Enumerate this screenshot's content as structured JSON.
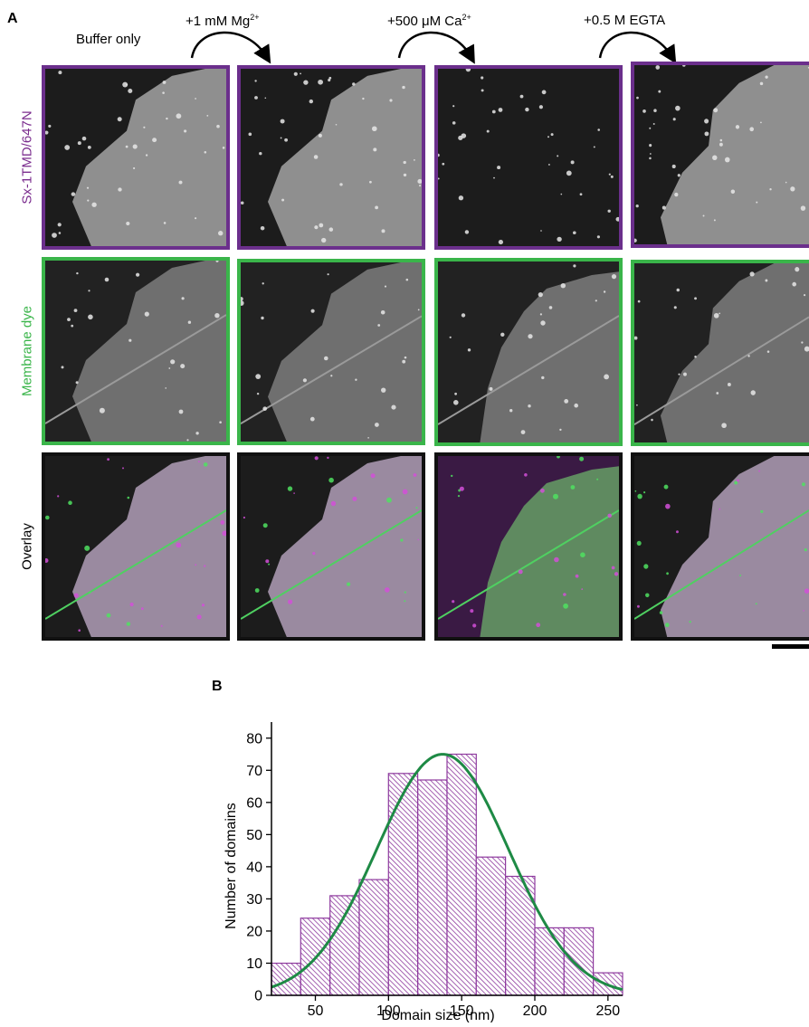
{
  "panel_a": {
    "letter": "A",
    "conditions": [
      {
        "label": "Buffer only",
        "sup": ""
      },
      {
        "label": "+1 mM Mg",
        "sup": "2+"
      },
      {
        "label": "+500 μM Ca",
        "sup": "2+"
      },
      {
        "label": "+0.5 M EGTA",
        "sup": ""
      }
    ],
    "rows": [
      {
        "label": "Sx-1TMD/647N",
        "color": "#7b2d8e"
      },
      {
        "label": "Membrane dye",
        "color": "#3ab54a"
      },
      {
        "label": "Overlay",
        "color": "#000000"
      }
    ]
  },
  "panel_b": {
    "letter": "B"
  },
  "chart_data": {
    "type": "bar",
    "xlabel": "Domain size (nm)",
    "ylabel": "Number of domains",
    "bin_edges": [
      20,
      40,
      60,
      80,
      100,
      120,
      140,
      160,
      180,
      200,
      220,
      240,
      260
    ],
    "values": [
      10,
      24,
      31,
      36,
      69,
      67,
      75,
      43,
      37,
      21,
      21,
      7
    ],
    "xlim": [
      20,
      260
    ],
    "ylim": [
      0,
      85
    ],
    "xticks": [
      50,
      100,
      150,
      200,
      250
    ],
    "yticks": [
      0,
      10,
      20,
      30,
      40,
      50,
      60,
      70,
      80
    ],
    "fit": {
      "type": "gaussian",
      "amplitude": 75,
      "mean": 137,
      "sd": 45
    },
    "bar_color": "#8e3a9e",
    "fit_color": "#1e8a45",
    "grid": false
  }
}
